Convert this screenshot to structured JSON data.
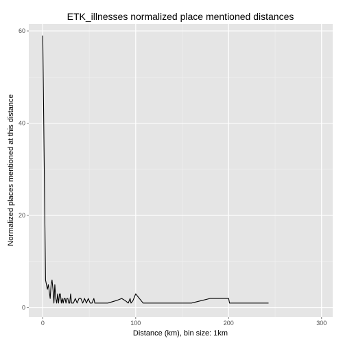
{
  "chart_data": {
    "type": "line",
    "title": "ETK_illnesses normalized place mentioned distances",
    "xlabel": "Distance (km), bin size: 1km",
    "ylabel": "Normalized places mentioned at this distance",
    "xlim": [
      -15,
      312
    ],
    "ylim": [
      -2,
      61.5
    ],
    "x_ticks": [
      0,
      100,
      200,
      300
    ],
    "y_ticks": [
      0,
      20,
      40,
      60
    ],
    "grid": true,
    "legend": "none",
    "colors": {
      "panel": "#e5e5e5",
      "grid_major": "#ffffff",
      "grid_minor": "#f2f2f2",
      "line": "#000000"
    },
    "series": [
      {
        "x": [
          0,
          3,
          5,
          6,
          8,
          9,
          10,
          11,
          12,
          13,
          14,
          15,
          16,
          17,
          18,
          19,
          20,
          21,
          22,
          23,
          24,
          25,
          26,
          27,
          28,
          29,
          30,
          31,
          33,
          35,
          37,
          39,
          41,
          43,
          45,
          47,
          49,
          51,
          53,
          55,
          56,
          58,
          60,
          65,
          70,
          75,
          80,
          85,
          89,
          92,
          94,
          95,
          97,
          100,
          102,
          104,
          106,
          108,
          110,
          113,
          116,
          130,
          140,
          150,
          160,
          170,
          180,
          190,
          200,
          201,
          230,
          243
        ],
        "y": [
          59,
          6,
          4,
          5,
          2,
          5,
          6,
          4,
          1,
          5,
          2,
          1,
          3,
          1,
          3,
          3,
          1,
          2,
          1,
          2,
          2,
          1,
          2,
          2,
          1,
          1,
          3,
          1,
          1,
          2,
          1,
          2,
          2,
          1,
          2,
          1,
          2,
          1,
          1,
          2,
          1,
          1,
          1,
          1,
          1,
          1.3,
          1.6,
          2,
          1.5,
          1,
          2,
          1,
          1.5,
          3,
          2.5,
          2,
          1.5,
          1,
          1,
          1,
          1,
          1,
          1,
          1,
          1,
          1.5,
          2,
          2,
          2,
          1,
          1,
          1
        ]
      }
    ]
  }
}
